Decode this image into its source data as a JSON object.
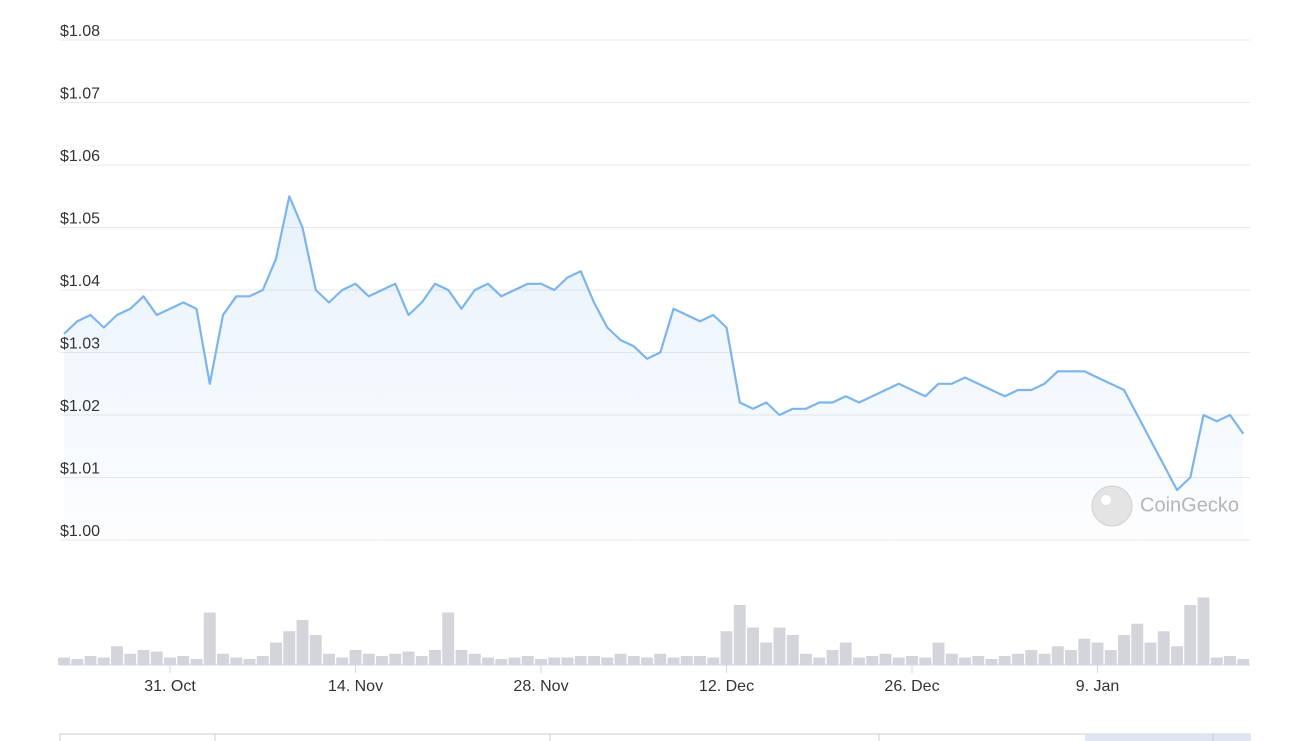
{
  "chart_data": [
    {
      "type": "line",
      "categories": [
        null,
        null,
        null,
        null,
        null,
        null,
        null,
        null,
        "31. Oct",
        null,
        null,
        null,
        null,
        null,
        null,
        null,
        null,
        null,
        null,
        null,
        null,
        null,
        "14. Nov",
        null,
        null,
        null,
        null,
        null,
        null,
        null,
        null,
        null,
        null,
        null,
        null,
        null,
        "28. Nov",
        null,
        null,
        null,
        null,
        null,
        null,
        null,
        null,
        null,
        null,
        null,
        null,
        null,
        "12. Dec",
        null,
        null,
        null,
        null,
        null,
        null,
        null,
        null,
        null,
        null,
        null,
        null,
        null,
        "26. Dec",
        null,
        null,
        null,
        null,
        null,
        null,
        null,
        null,
        null,
        null,
        null,
        null,
        null,
        "9. Jan",
        null,
        null,
        null,
        null,
        null,
        null,
        null,
        null,
        null,
        null,
        null
      ],
      "values": [
        1.033,
        1.035,
        1.036,
        1.034,
        1.036,
        1.037,
        1.039,
        1.036,
        1.037,
        1.038,
        1.037,
        1.025,
        1.036,
        1.039,
        1.039,
        1.04,
        1.045,
        1.055,
        1.05,
        1.04,
        1.038,
        1.04,
        1.041,
        1.039,
        1.04,
        1.041,
        1.036,
        1.038,
        1.041,
        1.04,
        1.037,
        1.04,
        1.041,
        1.039,
        1.04,
        1.041,
        1.041,
        1.04,
        1.042,
        1.043,
        1.038,
        1.034,
        1.032,
        1.031,
        1.029,
        1.03,
        1.037,
        1.036,
        1.035,
        1.036,
        1.034,
        1.022,
        1.021,
        1.022,
        1.02,
        1.021,
        1.021,
        1.022,
        1.022,
        1.023,
        1.022,
        1.023,
        1.024,
        1.025,
        1.024,
        1.023,
        1.025,
        1.025,
        1.026,
        1.025,
        1.024,
        1.023,
        1.024,
        1.024,
        1.025,
        1.027,
        1.027,
        1.027,
        1.026,
        1.025,
        1.024,
        1.02,
        1.016,
        1.012,
        1.008,
        1.01,
        1.02,
        1.019,
        1.02,
        1.017
      ],
      "color": "#7cb5ec",
      "ylim": [
        1.0,
        1.08
      ],
      "yticks": [
        {
          "value": 1.0,
          "label": "$1.00"
        },
        {
          "value": 1.01,
          "label": "$1.01"
        },
        {
          "value": 1.02,
          "label": "$1.02"
        },
        {
          "value": 1.03,
          "label": "$1.03"
        },
        {
          "value": 1.04,
          "label": "$1.04"
        },
        {
          "value": 1.05,
          "label": "$1.05"
        },
        {
          "value": 1.06,
          "label": "$1.06"
        },
        {
          "value": 1.07,
          "label": "$1.07"
        },
        {
          "value": 1.08,
          "label": "$1.08"
        }
      ],
      "grid": true,
      "watermark": "CoinGecko"
    },
    {
      "type": "bar",
      "values": [
        10,
        8,
        12,
        10,
        25,
        15,
        20,
        18,
        10,
        12,
        8,
        70,
        15,
        10,
        8,
        12,
        30,
        45,
        60,
        40,
        15,
        10,
        20,
        15,
        12,
        15,
        18,
        12,
        20,
        70,
        20,
        15,
        10,
        8,
        10,
        12,
        8,
        10,
        10,
        12,
        12,
        10,
        15,
        12,
        10,
        15,
        10,
        12,
        12,
        10,
        45,
        80,
        50,
        30,
        50,
        40,
        15,
        10,
        20,
        30,
        10,
        12,
        15,
        10,
        12,
        10,
        30,
        15,
        10,
        12,
        8,
        12,
        15,
        20,
        15,
        25,
        20,
        35,
        30,
        20,
        40,
        55,
        30,
        45,
        25,
        80,
        90,
        10,
        12,
        8
      ],
      "color": "#d3d5db",
      "ylim": [
        0,
        100
      ]
    }
  ]
}
